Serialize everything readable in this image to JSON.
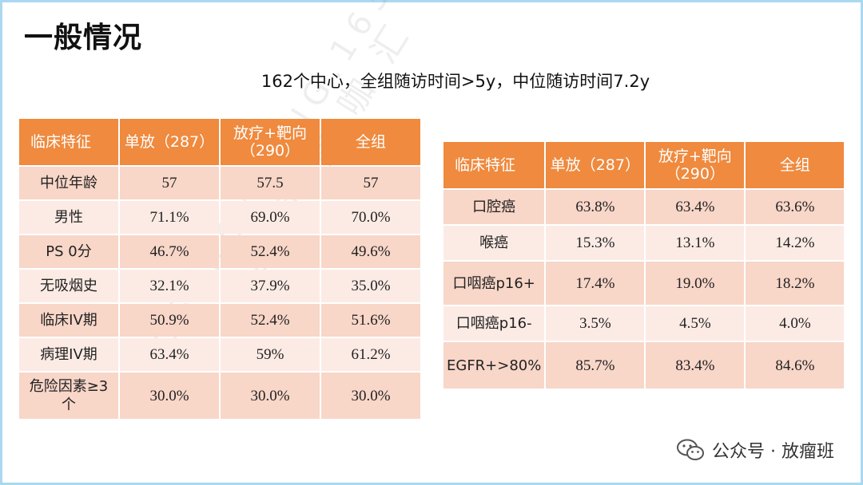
{
  "slide": {
    "title": "一般情况",
    "subtitle": "162个中心，全组随访时间>5y，中位随访时间7.2y"
  },
  "table1": {
    "headers": [
      "临床特征",
      "单放（287）",
      "放疗+靶向（290）",
      "全组"
    ],
    "rows": [
      [
        "中位年龄",
        "57",
        "57.5",
        "57"
      ],
      [
        "男性",
        "71.1%",
        "69.0%",
        "70.0%"
      ],
      [
        "PS 0分",
        "46.7%",
        "52.4%",
        "49.6%"
      ],
      [
        "无吸烟史",
        "32.1%",
        "37.9%",
        "35.0%"
      ],
      [
        "临床IV期",
        "50.9%",
        "52.4%",
        "51.6%"
      ],
      [
        "病理IV期",
        "63.4%",
        "59%",
        "61.2%"
      ],
      [
        "危险因素≥3个",
        "30.0%",
        "30.0%",
        "30.0%"
      ]
    ]
  },
  "table2": {
    "headers": [
      "临床特征",
      "单放（287）",
      "放疗+靶向（290）",
      "全组"
    ],
    "rows": [
      [
        "口腔癌",
        "63.8%",
        "63.4%",
        "63.6%"
      ],
      [
        "喉癌",
        "15.3%",
        "13.1%",
        "14.2%"
      ],
      [
        "口咽癌p16+",
        "17.4%",
        "19.0%",
        "18.2%"
      ],
      [
        "口咽癌p16-",
        "3.5%",
        "4.5%",
        "4.0%"
      ],
      [
        "EGFR+>80%",
        "85.7%",
        "83.4%",
        "84.6%"
      ]
    ]
  },
  "watermark": {
    "line1": "放 疗 青 咖 汇",
    "line2": "CSTROYOUNG.163.COM"
  },
  "footer": {
    "icon": "wechat-icon",
    "text": "公众号 · 放瘤班"
  }
}
